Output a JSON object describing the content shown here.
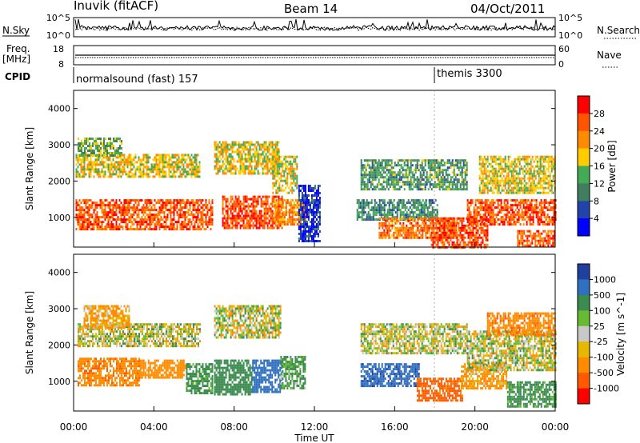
{
  "header": {
    "station": "Inuvik (fitACF)",
    "beam": "Beam 14",
    "date": "04/Oct/2011"
  },
  "top_panels": {
    "nsky_label": "N.Sky",
    "nsky_tick_top": "10^5",
    "nsky_tick_bottom": "10^0",
    "nsearch_label": "N.Search",
    "nsearch_tick_top": "10^5",
    "nsearch_tick_bottom": "10^0",
    "freq_label": "Freq.",
    "freq_unit": "[MHz]",
    "freq_tick_top": "18",
    "freq_tick_bottom": "8",
    "nave_label": "Nave",
    "nave_tick_top": "60",
    "nave_tick_bottom": "0",
    "cpid_label": "CPID",
    "cpid_segments": [
      {
        "label": "normalsound (fast) 157",
        "start_hour": 0
      },
      {
        "label": "themis 3300",
        "start_hour": 18
      }
    ]
  },
  "colors": {
    "power": [
      "#0000ff",
      "#2244aa",
      "#3f7f5f",
      "#44aa55",
      "#ffcc00",
      "#ff8c00",
      "#ff5500",
      "#ff0000"
    ],
    "velocity": [
      "#2040a0",
      "#3070c0",
      "#3c8c50",
      "#66bb33",
      "#c8c8c8",
      "#e6b800",
      "#ff8c00",
      "#ff5a00",
      "#ff0000"
    ]
  },
  "chart_data": [
    {
      "type": "heatmap",
      "title": "Power",
      "xlabel": "",
      "ylabel": "Slant Range [km]",
      "xlim": [
        0,
        24
      ],
      "ylim": [
        180,
        4500
      ],
      "yticks": [
        "1000",
        "2000",
        "3000",
        "4000"
      ],
      "colorbar_label": "Power [dB]",
      "colorbar_ticks": [
        "4",
        "8",
        "12",
        "16",
        "20",
        "24",
        "28"
      ],
      "grid": false,
      "bands": [
        {
          "t0": 0.1,
          "t1": 6.9,
          "r0": 650,
          "r1": 1500,
          "value": 26
        },
        {
          "t0": 0.1,
          "t1": 6.3,
          "r0": 2100,
          "r1": 2750,
          "value": 18
        },
        {
          "t0": 0.2,
          "t1": 2.4,
          "r0": 2700,
          "r1": 3200,
          "value": 14
        },
        {
          "t0": 7.4,
          "t1": 10.4,
          "r0": 700,
          "r1": 1600,
          "value": 27
        },
        {
          "t0": 7.0,
          "t1": 10.2,
          "r0": 2200,
          "r1": 3100,
          "value": 18
        },
        {
          "t0": 9.9,
          "t1": 11.1,
          "r0": 1700,
          "r1": 2700,
          "value": 18
        },
        {
          "t0": 10.0,
          "t1": 11.6,
          "r0": 800,
          "r1": 1500,
          "value": 22
        },
        {
          "t0": 11.2,
          "t1": 12.3,
          "r0": 350,
          "r1": 1900,
          "value": 5
        },
        {
          "t0": 14.3,
          "t1": 19.6,
          "r0": 1800,
          "r1": 2600,
          "value": 12
        },
        {
          "t0": 14.1,
          "t1": 18.1,
          "r0": 950,
          "r1": 1500,
          "value": 11
        },
        {
          "t0": 15.2,
          "t1": 19.1,
          "r0": 450,
          "r1": 1000,
          "value": 24
        },
        {
          "t0": 17.8,
          "t1": 20.6,
          "r0": 200,
          "r1": 1000,
          "value": 27
        },
        {
          "t0": 20.2,
          "t1": 24.0,
          "r0": 1700,
          "r1": 2700,
          "value": 18
        },
        {
          "t0": 19.6,
          "t1": 24.0,
          "r0": 800,
          "r1": 1500,
          "value": 26
        },
        {
          "t0": 22.1,
          "t1": 24.0,
          "r0": 200,
          "r1": 650,
          "value": 26
        }
      ]
    },
    {
      "type": "heatmap",
      "title": "Velocity",
      "xlabel": "Time UT",
      "ylabel": "Slant Range [km]",
      "xlim": [
        0,
        24
      ],
      "ylim": [
        180,
        4500
      ],
      "xticks": [
        "00:00",
        "04:00",
        "08:00",
        "12:00",
        "16:00",
        "20:00",
        "00:00"
      ],
      "yticks": [
        "1000",
        "2000",
        "3000",
        "4000"
      ],
      "colorbar_label": "Velocity [m s^-1]",
      "colorbar_ticks": [
        "1000",
        "500",
        "100",
        "25",
        "-25",
        "-100",
        "-500",
        "-1000"
      ],
      "grid": false,
      "bands": [
        {
          "t0": 0.2,
          "t1": 3.3,
          "r0": 900,
          "r1": 1650,
          "value": -400
        },
        {
          "t0": 3.3,
          "t1": 5.6,
          "r0": 1100,
          "r1": 1600,
          "value": -300
        },
        {
          "t0": 5.6,
          "t1": 6.9,
          "r0": 700,
          "r1": 1500,
          "value": 200
        },
        {
          "t0": 0.2,
          "t1": 6.3,
          "r0": 2000,
          "r1": 2600,
          "value": 0
        },
        {
          "t0": 0.5,
          "t1": 2.8,
          "r0": 2500,
          "r1": 3100,
          "value": -150
        },
        {
          "t0": 7.0,
          "t1": 8.9,
          "r0": 650,
          "r1": 1600,
          "value": 250
        },
        {
          "t0": 8.9,
          "t1": 10.4,
          "r0": 700,
          "r1": 1600,
          "value": 800
        },
        {
          "t0": 7.0,
          "t1": 10.3,
          "r0": 2200,
          "r1": 3100,
          "value": 0
        },
        {
          "t0": 10.3,
          "t1": 11.5,
          "r0": 800,
          "r1": 1700,
          "value": 150
        },
        {
          "t0": 14.3,
          "t1": 17.2,
          "r0": 900,
          "r1": 1500,
          "value": 900
        },
        {
          "t0": 14.3,
          "t1": 19.6,
          "r0": 1800,
          "r1": 2600,
          "value": 0
        },
        {
          "t0": 17.1,
          "t1": 19.4,
          "r0": 500,
          "r1": 1100,
          "value": -600
        },
        {
          "t0": 19.3,
          "t1": 21.6,
          "r0": 800,
          "r1": 1500,
          "value": -150
        },
        {
          "t0": 19.6,
          "t1": 24.0,
          "r0": 1300,
          "r1": 2400,
          "value": 0
        },
        {
          "t0": 20.6,
          "t1": 24.0,
          "r0": 2300,
          "r1": 2900,
          "value": -400
        },
        {
          "t0": 21.6,
          "t1": 24.0,
          "r0": 300,
          "r1": 1000,
          "value": 200
        }
      ]
    }
  ]
}
